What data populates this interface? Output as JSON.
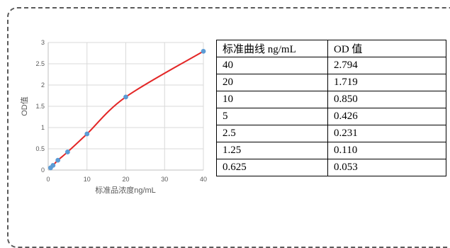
{
  "chart_data": {
    "type": "scatter",
    "xlabel": "标准品浓度ng/mL",
    "ylabel": "OD值",
    "xlim": [
      0,
      40
    ],
    "ylim": [
      0,
      3
    ],
    "x_ticks": [
      "0",
      "10",
      "20",
      "30",
      "40"
    ],
    "y_ticks": [
      "0",
      "0.5",
      "1",
      "1.5",
      "2",
      "2.5",
      "3"
    ],
    "grid": true,
    "curve": "smooth",
    "colors": {
      "points": "#5B9BD5",
      "line": "#E32727",
      "grid": "#D9D9D9"
    },
    "series": [
      {
        "x": [
          0.625,
          1.25,
          2.5,
          5,
          10,
          20,
          40
        ],
        "y": [
          0.053,
          0.11,
          0.231,
          0.426,
          0.85,
          1.719,
          2.794
        ]
      }
    ]
  },
  "table": {
    "headers": [
      "标准曲线 ng/mL",
      "OD 值"
    ],
    "rows": [
      [
        "40",
        "2.794"
      ],
      [
        "20",
        "1.719"
      ],
      [
        "10",
        "0.850"
      ],
      [
        "5",
        "0.426"
      ],
      [
        "2.5",
        "0.231"
      ],
      [
        "1.25",
        "0.110"
      ],
      [
        "0.625",
        "0.053"
      ]
    ]
  }
}
